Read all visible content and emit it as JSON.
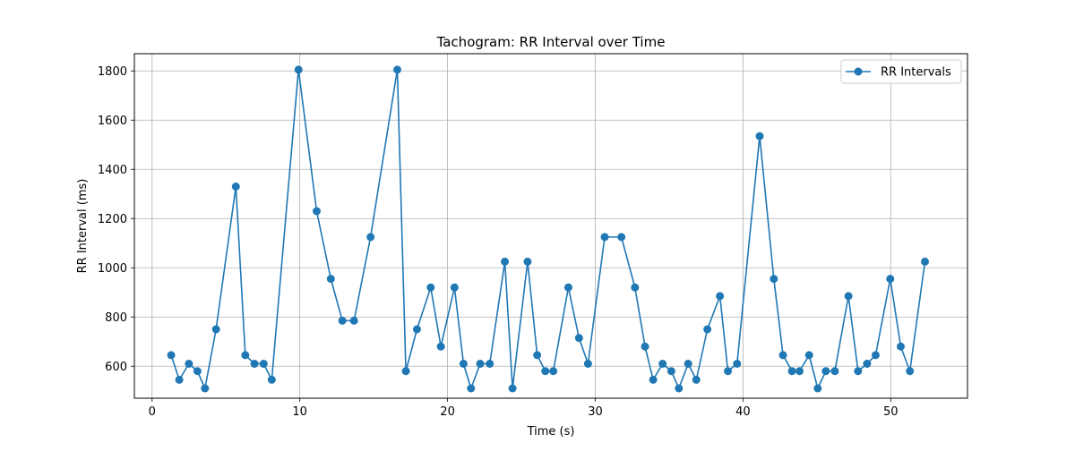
{
  "chart_data": {
    "type": "line",
    "title": "Tachogram: RR Interval over Time",
    "xlabel": "Time (s)",
    "ylabel": "RR Interval (ms)",
    "xlim": [
      -1.2,
      55.2
    ],
    "ylim": [
      470,
      1870
    ],
    "xticks": [
      0,
      10,
      20,
      30,
      40,
      50
    ],
    "yticks": [
      600,
      800,
      1000,
      1200,
      1400,
      1600,
      1800
    ],
    "grid": true,
    "legend_position": "top-right",
    "colors": {
      "series": "#1f77b4",
      "grid": "#b0b0b0"
    },
    "series": [
      {
        "name": "RR Intervals",
        "marker": "circle",
        "x": [
          1.29,
          1.84,
          2.49,
          3.07,
          3.58,
          4.33,
          5.67,
          6.31,
          6.93,
          7.55,
          8.1,
          9.91,
          11.14,
          12.1,
          12.88,
          13.67,
          14.79,
          16.6,
          17.18,
          17.93,
          18.86,
          19.55,
          20.47,
          21.08,
          21.59,
          22.21,
          22.86,
          23.88,
          24.4,
          25.42,
          26.07,
          26.62,
          27.16,
          28.18,
          28.9,
          29.51,
          30.64,
          31.77,
          32.69,
          33.37,
          33.92,
          34.56,
          35.15,
          35.66,
          36.29,
          36.84,
          37.59,
          38.44,
          38.98,
          39.6,
          41.13,
          42.09,
          42.71,
          43.32,
          43.83,
          44.48,
          45.06,
          45.61,
          46.22,
          47.14,
          47.79,
          48.4,
          48.98,
          49.97,
          50.68,
          51.3,
          52.32
        ],
        "y": [
          645,
          545,
          610,
          580,
          510,
          750,
          1330,
          645,
          610,
          610,
          545,
          1805,
          1230,
          955,
          785,
          785,
          1125,
          1805,
          580,
          750,
          920,
          680,
          920,
          610,
          510,
          610,
          610,
          1025,
          510,
          1025,
          645,
          580,
          580,
          920,
          715,
          610,
          1125,
          1125,
          920,
          680,
          545,
          610,
          580,
          510,
          610,
          545,
          750,
          885,
          580,
          610,
          1535,
          955,
          645,
          580,
          580,
          645,
          510,
          580,
          580,
          885,
          580,
          610,
          645,
          955,
          680,
          580,
          1025
        ]
      }
    ]
  }
}
